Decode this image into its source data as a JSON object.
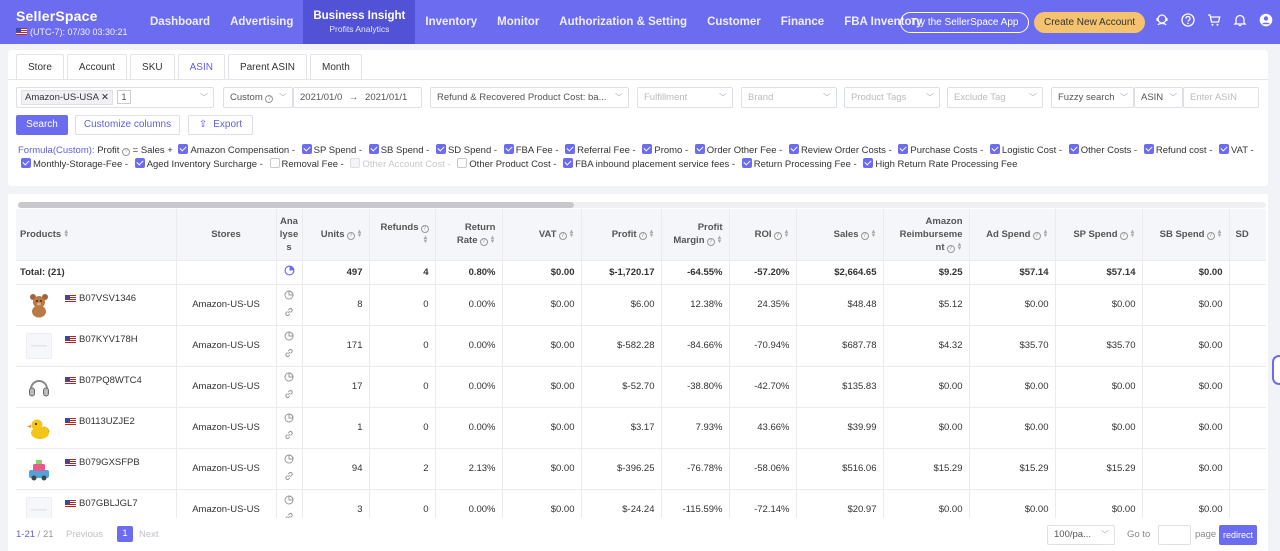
{
  "brand": {
    "name": "SellerSpace",
    "timezone": "(UTC-7): 07/30 03:30:21"
  },
  "nav": [
    {
      "label": "Dashboard"
    },
    {
      "label": "Advertising"
    },
    {
      "label": "Business Insight",
      "sub": "Profits Analytics"
    },
    {
      "label": "Inventory"
    },
    {
      "label": "Monitor"
    },
    {
      "label": "Authorization & Setting"
    },
    {
      "label": "Customer"
    },
    {
      "label": "Finance"
    },
    {
      "label": "FBA Inventory"
    }
  ],
  "header_buttons": {
    "try_app": "Try the SellerSpace App",
    "create_account": "Create New Account"
  },
  "header_icons": [
    "support-icon",
    "help-icon",
    "cart-icon",
    "bell-icon",
    "user-icon"
  ],
  "tabs": [
    "Store",
    "Account",
    "SKU",
    "ASIN",
    "Parent ASIN",
    "Month"
  ],
  "filters": {
    "store_chip": "Amazon-US-USA",
    "store_count": "1",
    "date_mode": "Custom",
    "date_start": "2021/01/0",
    "date_end": "2021/01/1",
    "cost_mode": "Refund & Recovered Product Cost: ba...",
    "fulfillment": "Fulfillment",
    "brand": "Brand",
    "product_tags": "Product Tags",
    "exclude_tag": "Exclude Tag",
    "search_mode": "Fuzzy search",
    "search_field": "ASIN",
    "search_placeholder": "Enter ASIN"
  },
  "actions": {
    "search": "Search",
    "customize": "Customize columns",
    "export": "Export"
  },
  "formula": {
    "label": "Formula(Custom):",
    "lead": "Profit",
    "eq": "= Sales +",
    "items": [
      {
        "text": "Amazon Compensation -",
        "state": "on"
      },
      {
        "text": "SP Spend -",
        "state": "on"
      },
      {
        "text": "SB Spend -",
        "state": "on"
      },
      {
        "text": "SD Spend -",
        "state": "on"
      },
      {
        "text": "FBA Fee -",
        "state": "on"
      },
      {
        "text": "Referral Fee -",
        "state": "on"
      },
      {
        "text": "Promo -",
        "state": "on"
      },
      {
        "text": "Order Other Fee -",
        "state": "on"
      },
      {
        "text": "Review Order Costs -",
        "state": "on"
      },
      {
        "text": "Purchase Costs -",
        "state": "on"
      },
      {
        "text": "Logistic Cost -",
        "state": "on"
      },
      {
        "text": "Other Costs -",
        "state": "on"
      },
      {
        "text": "Refund cost -",
        "state": "on"
      },
      {
        "text": "VAT -",
        "state": "on"
      },
      {
        "text": "Monthly-Storage-Fee -",
        "state": "on"
      },
      {
        "text": "Aged Inventory Surcharge -",
        "state": "on"
      },
      {
        "text": "Removal Fee -",
        "state": "off"
      },
      {
        "text": "Other Account Cost -",
        "state": "disabled"
      },
      {
        "text": "Other Product Cost -",
        "state": "off"
      },
      {
        "text": "FBA inbound placement service fees -",
        "state": "on"
      },
      {
        "text": "Return Processing Fee -",
        "state": "on"
      },
      {
        "text": "High Return Rate Processing Fee",
        "state": "on"
      }
    ]
  },
  "table": {
    "columns": [
      "Products",
      "Stores",
      "Analyses",
      "Units",
      "Refunds",
      "Return Rate",
      "VAT",
      "Profit",
      "Profit Margin",
      "ROI",
      "Sales",
      "Amazon Reimbursement",
      "Ad Spend",
      "SP Spend",
      "SB Spend",
      "SD"
    ],
    "total": {
      "label": "Total: (21)",
      "values": [
        "497",
        "4",
        "0.80%",
        "$0.00",
        "$-1,720.17",
        "-64.55%",
        "-57.20%",
        "$2,664.65",
        "$9.25",
        "$57.14",
        "$57.14",
        "$0.00"
      ]
    },
    "rows": [
      {
        "asin": "B07VSV1346",
        "store": "Amazon-US-US",
        "thumb": "bear",
        "values": [
          "8",
          "0",
          "0.00%",
          "$0.00",
          "$6.00",
          "12.38%",
          "24.35%",
          "$48.48",
          "$5.12",
          "$0.00",
          "$0.00",
          "$0.00"
        ]
      },
      {
        "asin": "B07KYV178H",
        "store": "Amazon-US-US",
        "thumb": "blank",
        "values": [
          "171",
          "0",
          "0.00%",
          "$0.00",
          "$-582.28",
          "-84.66%",
          "-70.94%",
          "$687.78",
          "$4.32",
          "$35.70",
          "$35.70",
          "$0.00"
        ]
      },
      {
        "asin": "B07PQ8WTC4",
        "store": "Amazon-US-US",
        "thumb": "headphones",
        "values": [
          "17",
          "0",
          "0.00%",
          "$0.00",
          "$-52.70",
          "-38.80%",
          "-42.70%",
          "$135.83",
          "$0.00",
          "$0.00",
          "$0.00",
          "$0.00"
        ]
      },
      {
        "asin": "B0113UZJE2",
        "store": "Amazon-US-US",
        "thumb": "duck",
        "values": [
          "1",
          "0",
          "0.00%",
          "$0.00",
          "$3.17",
          "7.93%",
          "43.66%",
          "$39.99",
          "$0.00",
          "$0.00",
          "$0.00",
          "$0.00"
        ]
      },
      {
        "asin": "B079GXSFPB",
        "store": "Amazon-US-US",
        "thumb": "toy",
        "values": [
          "94",
          "2",
          "2.13%",
          "$0.00",
          "$-396.25",
          "-76.78%",
          "-58.06%",
          "$516.06",
          "$15.29",
          "$15.29",
          "$15.29",
          "$0.00"
        ]
      },
      {
        "asin": "B07GBLJGL7",
        "store": "Amazon-US-US",
        "thumb": "blank",
        "values": [
          "3",
          "0",
          "0.00%",
          "$0.00",
          "$-24.24",
          "-115.59%",
          "-72.14%",
          "$20.97",
          "$0.00",
          "$0.00",
          "$0.00",
          "$0.00"
        ]
      }
    ]
  },
  "pagination": {
    "range": "1-21",
    "total": "21",
    "previous": "Previous",
    "current": "1",
    "next": "Next",
    "per_page": "100/pa...",
    "goto": "Go to",
    "page": "page",
    "redirect": "redirect"
  },
  "colors": {
    "primary": "#6c6cf0",
    "active_nav": "#5252d6",
    "create_button": "#f5c270"
  }
}
